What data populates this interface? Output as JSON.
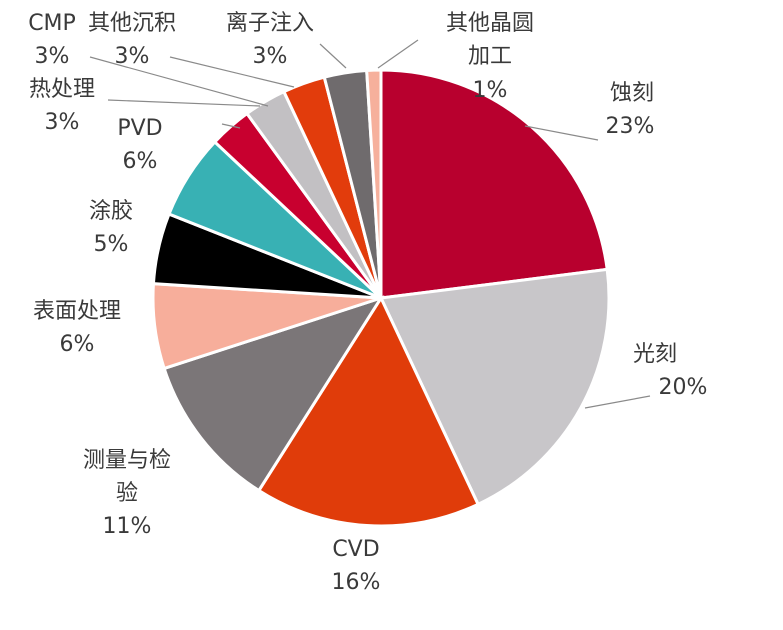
{
  "chart_data": {
    "type": "pie",
    "unit": "%",
    "slices": [
      {
        "label": "蚀刻",
        "value": 23,
        "display": "23%",
        "color": "#b8002e"
      },
      {
        "label": "光刻",
        "value": 20,
        "display": "20%",
        "color": "#c8c6c9"
      },
      {
        "label": "CVD",
        "value": 16,
        "display": "16%",
        "color": "#e03c0a"
      },
      {
        "label": "测量与检验",
        "value": 11,
        "display": "11%",
        "color": "#7b7678"
      },
      {
        "label": "表面处理",
        "value": 6,
        "display": "6%",
        "color": "#f7ae9b"
      },
      {
        "label": "涂胶",
        "value": 5,
        "display": "5%",
        "color": "#000000"
      },
      {
        "label": "PVD",
        "value": 6,
        "display": "6%",
        "color": "#38b1b4"
      },
      {
        "label": "热处理",
        "value": 3,
        "display": "3%",
        "color": "#c8002f"
      },
      {
        "label": "CMP",
        "value": 3,
        "display": "3%",
        "color": "#c2c0c3"
      },
      {
        "label": "其他沉积",
        "value": 3,
        "display": "3%",
        "color": "#e23c0c"
      },
      {
        "label": "离子注入",
        "value": 3,
        "display": "3%",
        "color": "#6f6b6d"
      },
      {
        "label": "其他晶圆加工",
        "value": 1,
        "display": "1%",
        "color": "#f6b09c"
      }
    ]
  }
}
